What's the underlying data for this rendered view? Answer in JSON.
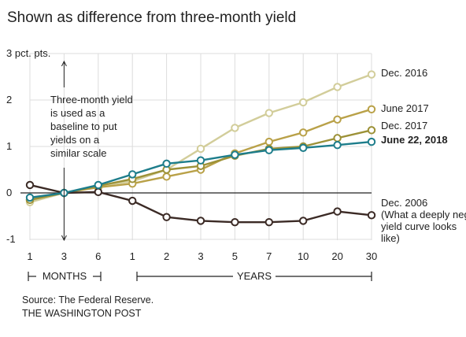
{
  "chart_data": {
    "type": "line",
    "title": "Shown as difference from three-month yield",
    "x": [
      "1",
      "3",
      "6",
      "1",
      "2",
      "3",
      "5",
      "7",
      "10",
      "20",
      "30"
    ],
    "y_ticks": [
      "3 pct. pts.",
      "2",
      "1",
      "0",
      "-1"
    ],
    "ylim": [
      -1,
      3
    ],
    "grid": true,
    "x_groups": [
      {
        "label": "MONTHS"
      },
      {
        "label": "YEARS"
      }
    ],
    "series": [
      {
        "name": "Dec. 2016",
        "color": "#d2cd9a",
        "values": [
          -0.2,
          0,
          0.15,
          0.25,
          0.5,
          0.95,
          1.4,
          1.72,
          1.95,
          2.28,
          2.55
        ]
      },
      {
        "name": "June 2017",
        "color": "#b9a148",
        "values": [
          -0.15,
          0,
          0.12,
          0.2,
          0.35,
          0.5,
          0.85,
          1.1,
          1.3,
          1.58,
          1.8
        ]
      },
      {
        "name": "Dec. 2017",
        "color": "#9c9137",
        "values": [
          -0.15,
          0,
          0.15,
          0.3,
          0.5,
          0.58,
          0.8,
          0.95,
          1.0,
          1.18,
          1.35
        ]
      },
      {
        "name": "June 22, 2018",
        "color": "#1d7d8b",
        "values": [
          -0.1,
          0,
          0.17,
          0.4,
          0.63,
          0.7,
          0.82,
          0.92,
          0.97,
          1.03,
          1.1
        ]
      },
      {
        "name": "Dec. 2006",
        "color": "#3b2a25",
        "values": [
          0.17,
          0,
          0.02,
          -0.17,
          -0.52,
          -0.6,
          -0.63,
          -0.63,
          -0.6,
          -0.4,
          -0.48
        ]
      }
    ],
    "series_note": "(What a deeply negative yield curve looks like)",
    "annotation": [
      "Three-month yield",
      "is used as a",
      "baseline to put",
      "yields on  a",
      "similar scale"
    ]
  },
  "footer": {
    "source": "Source: The Federal Reserve.",
    "credit": "THE WASHINGTON POST"
  }
}
